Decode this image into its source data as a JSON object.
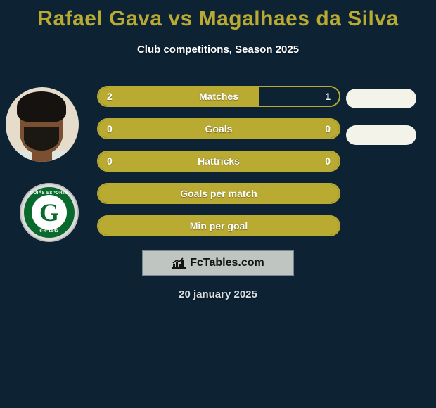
{
  "title_color": "#b9aa32",
  "title": "Rafael Gava vs Magalhaes da Silva",
  "subtitle": "Club competitions, Season 2025",
  "footer_date": "20 january 2025",
  "brand_text": "FcTables.com",
  "player_left": {
    "name": "Rafael Gava",
    "club": "Goiás Esporte Clube",
    "club_color": "#0a6a2e",
    "club_initial": "G",
    "club_top": "GOIÁS ESPORTE",
    "club_bot": "6·4·1943"
  },
  "player_right": {
    "name": "Magalhaes da Silva"
  },
  "side_marker_color": "#f3f3ea",
  "stats": [
    {
      "label": "Matches",
      "left_value": "2",
      "right_value": "1",
      "fill_color": "#b9aa32",
      "border_color": "#b9aa32",
      "empty_color": "#0d2334",
      "left_ratio": 0.666,
      "value_visible": true,
      "side_marker": true
    },
    {
      "label": "Goals",
      "left_value": "0",
      "right_value": "0",
      "fill_color": "#b9aa32",
      "border_color": "#b9aa32",
      "empty_color": "#0d2334",
      "left_ratio": 1.0,
      "value_visible": true,
      "side_marker": true
    },
    {
      "label": "Hattricks",
      "left_value": "0",
      "right_value": "0",
      "fill_color": "#b9aa32",
      "border_color": "#b9aa32",
      "empty_color": "#0d2334",
      "left_ratio": 1.0,
      "value_visible": true,
      "side_marker": false
    },
    {
      "label": "Goals per match",
      "left_value": "",
      "right_value": "",
      "fill_color": "#b9aa32",
      "border_color": "#b9aa32",
      "empty_color": "#0d2334",
      "left_ratio": 1.0,
      "value_visible": false,
      "side_marker": false
    },
    {
      "label": "Min per goal",
      "left_value": "",
      "right_value": "",
      "fill_color": "#b9aa32",
      "border_color": "#b9aa32",
      "empty_color": "#0d2334",
      "left_ratio": 1.0,
      "value_visible": false,
      "side_marker": false
    }
  ]
}
